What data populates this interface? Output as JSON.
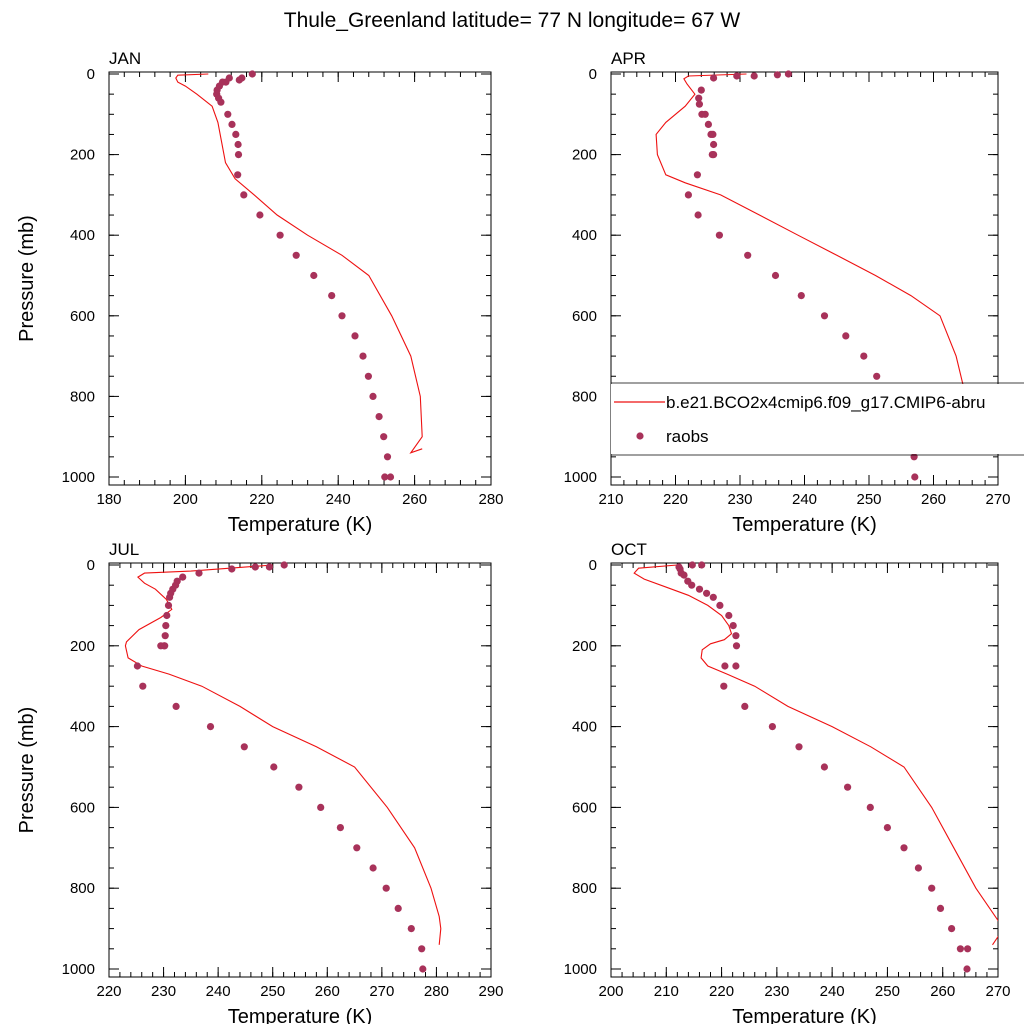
{
  "figure_title": "Thule_Greenland  latitude= 77 N longitude= 67 W",
  "colors": {
    "model": "#ee1111",
    "obs": "#a8325a",
    "axes": "#000000"
  },
  "legend": {
    "placement": "inside upper-right panel, lower part",
    "model_label": "b.e21.BCO2x4cmip6.f09_g17.CMIP6-abru",
    "obs_label": "raobs"
  },
  "chart_data": [
    {
      "type": "line+scatter",
      "label": "JAN",
      "xlabel": "Temperature (K)",
      "ylabel": "Pressure (mb)",
      "xlim": [
        180,
        280
      ],
      "ylim": [
        0,
        1000
      ],
      "y_reversed": true,
      "grid": false,
      "xticks": [
        "180",
        "200",
        "220",
        "240",
        "260",
        "280"
      ],
      "yticks": [
        "0",
        "200",
        "400",
        "600",
        "800",
        "1000"
      ],
      "series": [
        {
          "name": "b.e21.BCO2x4cmip6.f09_g17.CMIP6-abru",
          "kind": "line",
          "x": [
            206,
            198,
            197.5,
            198,
            200,
            203,
            207,
            208.5,
            209.5,
            210.5,
            213,
            218,
            224,
            232,
            241,
            248,
            254,
            259,
            261.5,
            262,
            259,
            262
          ],
          "y": [
            0,
            3,
            10,
            20,
            30,
            50,
            80,
            120,
            170,
            220,
            260,
            300,
            350,
            400,
            450,
            500,
            600,
            700,
            800,
            900,
            940,
            930
          ]
        },
        {
          "name": "raobs",
          "kind": "scatter",
          "x": [
            217.5,
            214.8,
            214.1,
            211.5,
            210.6,
            209.7,
            208.9,
            208.3,
            208.2,
            208.7,
            209.3,
            211.1,
            212.2,
            213.2,
            213.8,
            213.9,
            213.7,
            215.3,
            219.5,
            224.8,
            229,
            233.6,
            238.3,
            241,
            244.4,
            246.5,
            247.9,
            249.1,
            250.7,
            251.9,
            252.9,
            253.7,
            252.2
          ],
          "y": [
            0,
            10,
            15,
            10,
            20,
            20,
            30,
            40,
            50,
            60,
            70,
            100,
            125,
            150,
            175,
            200,
            250,
            300,
            350,
            400,
            450,
            500,
            550,
            600,
            650,
            700,
            750,
            800,
            850,
            900,
            950,
            1000,
            1000
          ]
        }
      ]
    },
    {
      "type": "line+scatter",
      "label": "APR",
      "xlabel": "Temperature (K)",
      "ylabel": "",
      "xlim": [
        210,
        270
      ],
      "ylim": [
        0,
        1000
      ],
      "y_reversed": true,
      "grid": false,
      "xticks": [
        "210",
        "220",
        "230",
        "240",
        "250",
        "260",
        "270"
      ],
      "yticks": [
        "0",
        "200",
        "400",
        "600",
        "800",
        "1000"
      ],
      "series": [
        {
          "name": "b.e21.BCO2x4cmip6.f09_g17.CMIP6-abru",
          "kind": "line",
          "x": [
            231,
            222,
            221.3,
            221.8,
            223,
            221.5,
            218.5,
            217,
            217.2,
            218.5,
            221.5,
            227,
            233,
            239,
            245,
            251,
            256.5,
            261,
            263.5,
            265,
            265.3,
            265.3,
            263.5
          ],
          "y": [
            0,
            5,
            12,
            25,
            50,
            80,
            120,
            150,
            200,
            250,
            270,
            300,
            350,
            400,
            450,
            500,
            550,
            600,
            700,
            800,
            870,
            920,
            940
          ]
        },
        {
          "name": "raobs",
          "kind": "scatter",
          "x": [
            237.5,
            235.8,
            232.2,
            229.5,
            225.9,
            224,
            223.6,
            223.7,
            224.1,
            224.6,
            225.1,
            225.5,
            225.8,
            225.9,
            225.9,
            225.7,
            223.4,
            222,
            223.5,
            226.8,
            231.2,
            235.5,
            239.5,
            243.1,
            246.4,
            249.2,
            251.2,
            253.2,
            254.5,
            255.7,
            257,
            257.1
          ],
          "y": [
            0,
            2,
            5,
            5,
            10,
            40,
            60,
            75,
            100,
            100,
            125,
            150,
            150,
            175,
            200,
            200,
            250,
            300,
            350,
            400,
            450,
            500,
            550,
            600,
            650,
            700,
            750,
            800,
            850,
            900,
            950,
            1000
          ]
        }
      ]
    },
    {
      "type": "line+scatter",
      "label": "JUL",
      "xlabel": "Temperature (K)",
      "ylabel": "Pressure (mb)",
      "xlim": [
        220,
        290
      ],
      "ylim": [
        0,
        1000
      ],
      "y_reversed": true,
      "grid": false,
      "xticks": [
        "220",
        "230",
        "240",
        "250",
        "260",
        "270",
        "280",
        "290"
      ],
      "yticks": [
        "0",
        "200",
        "400",
        "600",
        "800",
        "1000"
      ],
      "series": [
        {
          "name": "b.e21.BCO2x4cmip6.f09_g17.CMIP6-abru",
          "kind": "line",
          "x": [
            250,
            235,
            226.5,
            225.3,
            226.5,
            228.5,
            230.5,
            231.5,
            229.5,
            225.5,
            223.2,
            223,
            223.5,
            226,
            231,
            237,
            244,
            250,
            258,
            265,
            271,
            276,
            279,
            280.5,
            280.8,
            280.5
          ],
          "y": [
            0,
            15,
            20,
            30,
            45,
            60,
            85,
            110,
            130,
            160,
            190,
            200,
            230,
            250,
            270,
            300,
            350,
            400,
            450,
            500,
            600,
            700,
            800,
            870,
            900,
            940
          ]
        },
        {
          "name": "raobs",
          "kind": "scatter",
          "x": [
            252.1,
            249.4,
            246.8,
            242.5,
            236.5,
            233.5,
            232.5,
            232.2,
            231.7,
            231.3,
            231.1,
            230.9,
            230.6,
            230.4,
            230.3,
            230.2,
            230.1,
            229.5,
            225.2,
            226.2,
            232.3,
            238.6,
            244.8,
            250.2,
            254.8,
            258.8,
            262.4,
            265.4,
            268.4,
            270.8,
            273,
            275.4,
            277.3,
            277.5
          ],
          "y": [
            0,
            5,
            5,
            10,
            20,
            30,
            40,
            50,
            60,
            70,
            80,
            100,
            125,
            150,
            175,
            200,
            200,
            200,
            250,
            300,
            350,
            400,
            450,
            500,
            550,
            600,
            650,
            700,
            750,
            800,
            850,
            900,
            950,
            1000
          ]
        }
      ]
    },
    {
      "type": "line+scatter",
      "label": "OCT",
      "xlabel": "Temperature (K)",
      "ylabel": "",
      "xlim": [
        200,
        270
      ],
      "ylim": [
        0,
        1000
      ],
      "y_reversed": true,
      "grid": false,
      "xticks": [
        "200",
        "210",
        "220",
        "230",
        "240",
        "250",
        "260",
        "270"
      ],
      "yticks": [
        "0",
        "200",
        "400",
        "600",
        "800",
        "1000"
      ],
      "series": [
        {
          "name": "b.e21.BCO2x4cmip6.f09_g17.CMIP6-abru",
          "kind": "line",
          "x": [
            212,
            205,
            204.2,
            206,
            210,
            214,
            217.5,
            220,
            221.3,
            221.8,
            220.5,
            218,
            216.5,
            216.3,
            217.5,
            221,
            226,
            232,
            240,
            247,
            253,
            258,
            262,
            266,
            270,
            271,
            269
          ],
          "y": [
            0,
            8,
            20,
            35,
            55,
            75,
            100,
            125,
            150,
            170,
            185,
            195,
            210,
            230,
            250,
            270,
            300,
            350,
            400,
            450,
            500,
            600,
            700,
            800,
            880,
            900,
            940
          ]
        },
        {
          "name": "raobs",
          "kind": "scatter",
          "x": [
            216.4,
            214.7,
            212.3,
            212.5,
            212.7,
            213.2,
            213.9,
            214.6,
            216,
            217.3,
            218.5,
            219.7,
            221.3,
            222.1,
            222.6,
            222.7,
            222.6,
            220.6,
            220.4,
            224.2,
            229.2,
            234,
            238.6,
            242.8,
            246.9,
            250,
            253,
            255.6,
            258,
            259.6,
            261.6,
            263.2,
            264.5,
            264.4
          ],
          "y": [
            0,
            0,
            5,
            10,
            20,
            25,
            40,
            50,
            60,
            70,
            80,
            100,
            125,
            150,
            175,
            200,
            250,
            250,
            300,
            350,
            400,
            450,
            500,
            550,
            600,
            650,
            700,
            750,
            800,
            850,
            900,
            950,
            950,
            1000
          ]
        }
      ]
    }
  ]
}
